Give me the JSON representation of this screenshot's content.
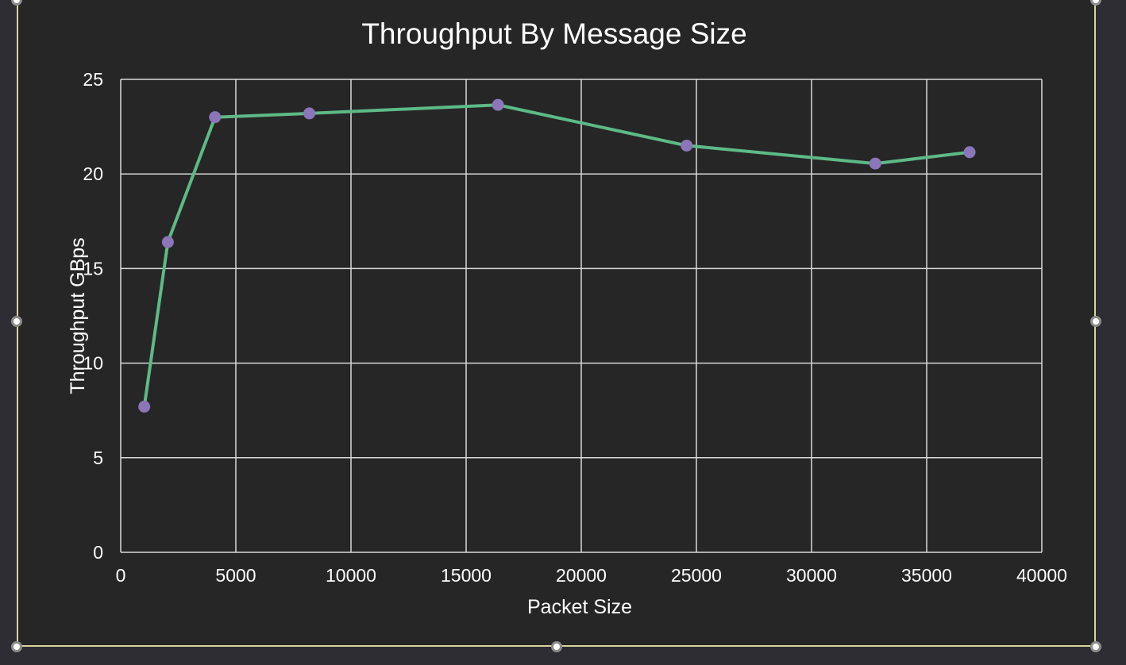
{
  "chart_data": {
    "type": "line",
    "title": "Throughput By Message Size",
    "xlabel": "Packet Size",
    "ylabel": "Throughput GBps",
    "xlim": [
      0,
      40000
    ],
    "ylim": [
      0,
      25
    ],
    "xticks": [
      "0",
      "5000",
      "10000",
      "15000",
      "20000",
      "25000",
      "30000",
      "35000",
      "40000"
    ],
    "yticks": [
      "0",
      "5",
      "10",
      "15",
      "20",
      "25"
    ],
    "grid": true,
    "legend": "none",
    "series": [
      {
        "x": [
          1024,
          2048,
          4096,
          8192,
          16384,
          24576,
          32768,
          36864
        ],
        "y": [
          7.7,
          16.4,
          23.0,
          23.2,
          23.65,
          21.5,
          20.55,
          21.15
        ]
      }
    ]
  },
  "colors": {
    "background": "#262626",
    "grid": "#d9d9d9",
    "line": "#5dba86",
    "marker": "#8a76b8",
    "text": "#ffffff",
    "selection_border": "#d9d39a"
  }
}
